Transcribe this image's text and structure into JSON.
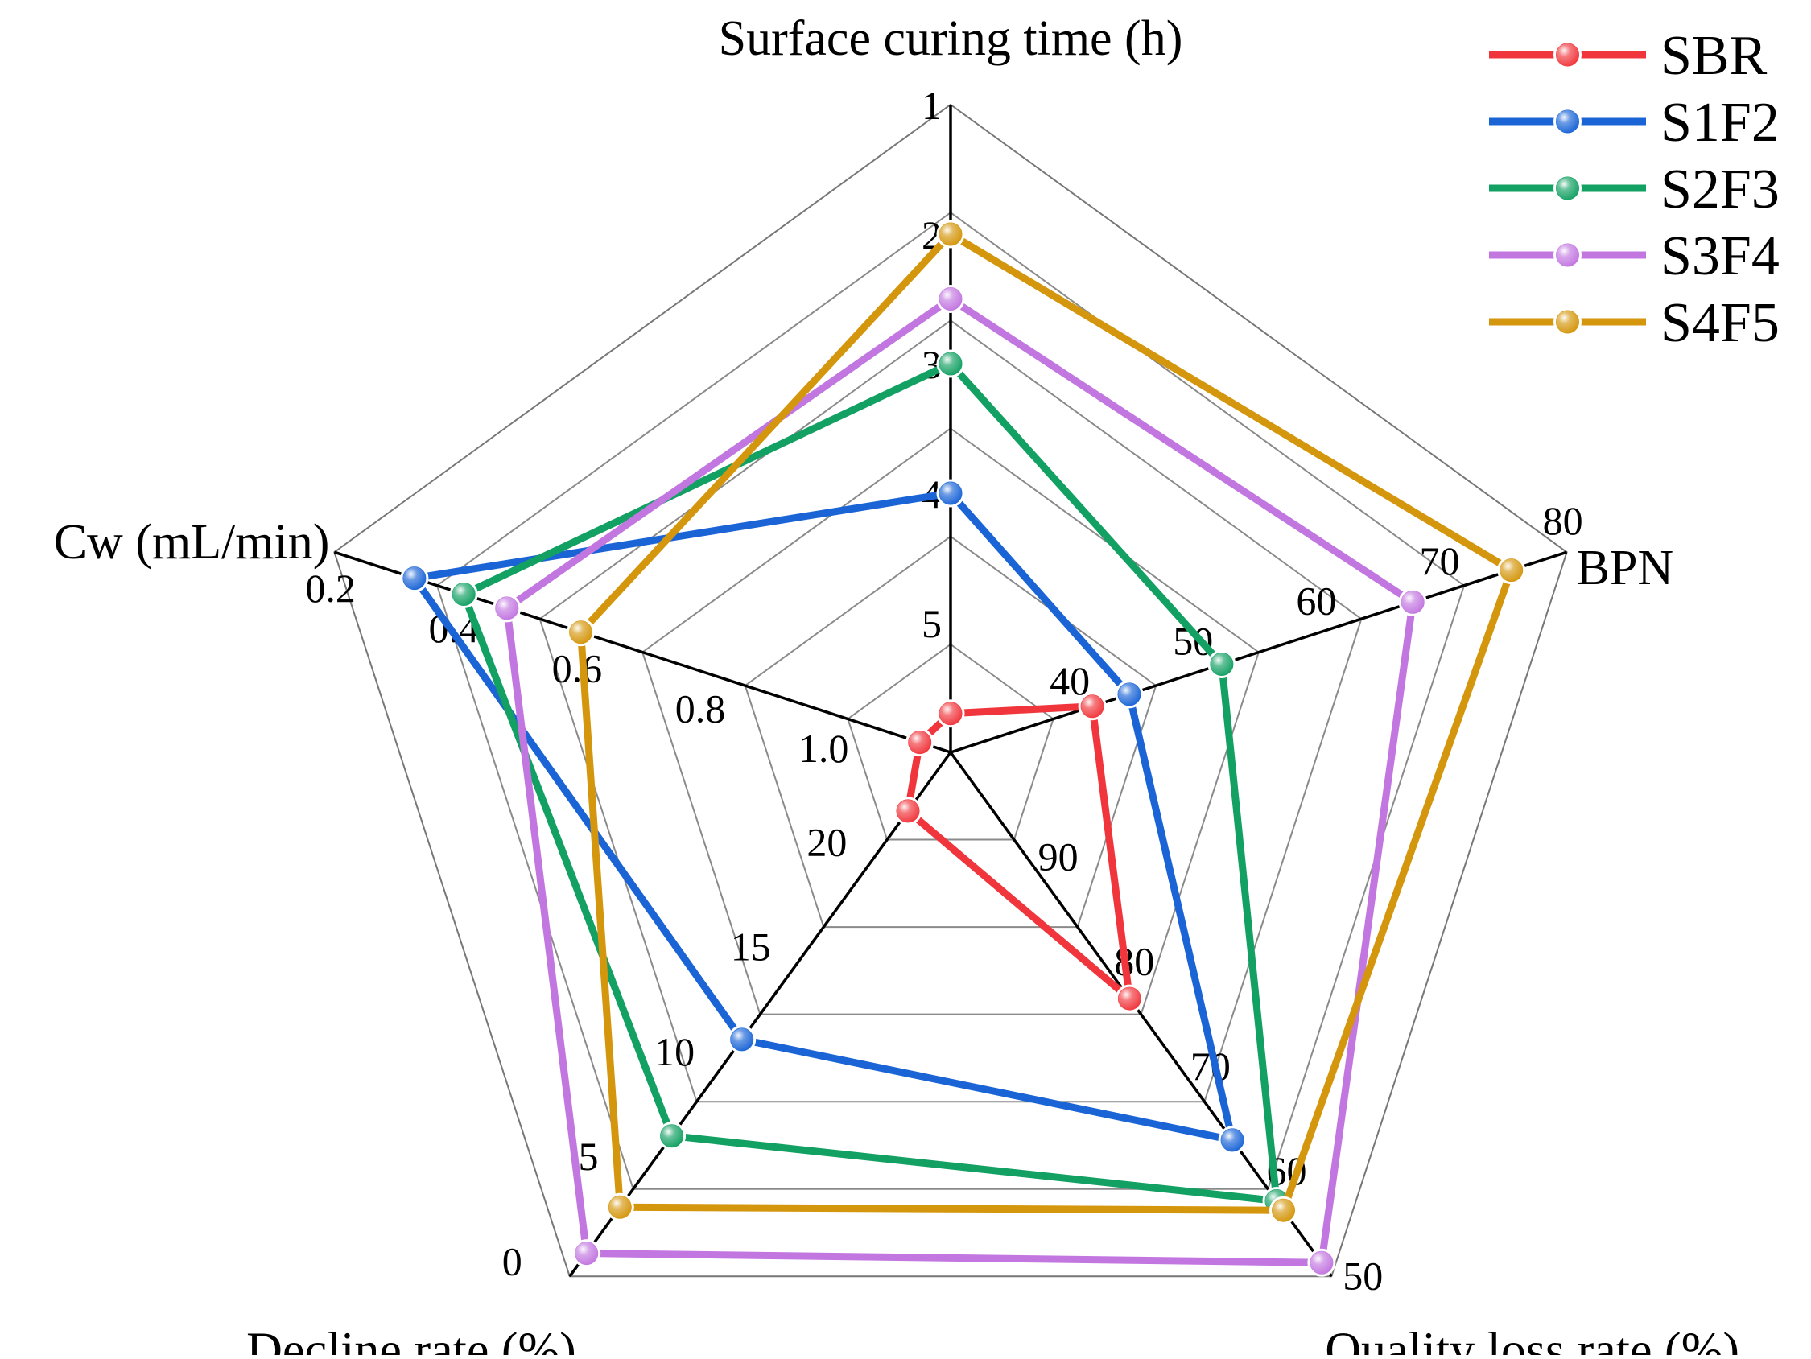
{
  "chart_data": {
    "type": "radar",
    "axes": [
      {
        "name": "Surface curing time (h)",
        "ticks": [
          "1",
          "2",
          "3",
          "4",
          "5"
        ],
        "tick_values": [
          1,
          2,
          3,
          4,
          5
        ],
        "range": [
          6,
          1
        ]
      },
      {
        "name": "BPN",
        "ticks": [
          "40",
          "50",
          "60",
          "70",
          "80"
        ],
        "tick_values": [
          40,
          50,
          60,
          70,
          80
        ],
        "range": [
          30,
          80
        ]
      },
      {
        "name": "Quality loss rate (%)",
        "ticks": [
          "90",
          "80",
          "70",
          "60",
          "50"
        ],
        "tick_values": [
          90,
          80,
          70,
          60,
          50
        ],
        "range": [
          100,
          50
        ]
      },
      {
        "name": "Decline rate (%)",
        "ticks": [
          "20",
          "15",
          "10",
          "5",
          "0"
        ],
        "tick_values": [
          20,
          15,
          10,
          5,
          0
        ],
        "range": [
          25,
          0
        ]
      },
      {
        "name": "Cw (mL/min)",
        "ticks": [
          "1.0",
          "0.8",
          "0.6",
          "0.4",
          "0.2"
        ],
        "tick_values": [
          1.0,
          0.8,
          0.6,
          0.4,
          0.2
        ],
        "range": [
          1.2,
          0.2
        ]
      }
    ],
    "series": [
      {
        "name": "SBR",
        "color": "#f0363c",
        "values": [
          5.7,
          41.5,
          76.5,
          22.2,
          1.15
        ]
      },
      {
        "name": "S1F2",
        "color": "#1a64d6",
        "values": [
          4.0,
          44.5,
          63.0,
          11.3,
          0.33
        ]
      },
      {
        "name": "S2F3",
        "color": "#13a063",
        "values": [
          3.0,
          52.0,
          57.2,
          6.7,
          0.41
        ]
      },
      {
        "name": "S3F4",
        "color": "#c276e0",
        "values": [
          2.5,
          67.5,
          51.3,
          1.1,
          0.48
        ]
      },
      {
        "name": "S4F5",
        "color": "#d4960c",
        "values": [
          2.0,
          75.5,
          56.3,
          3.3,
          0.6
        ]
      }
    ]
  }
}
